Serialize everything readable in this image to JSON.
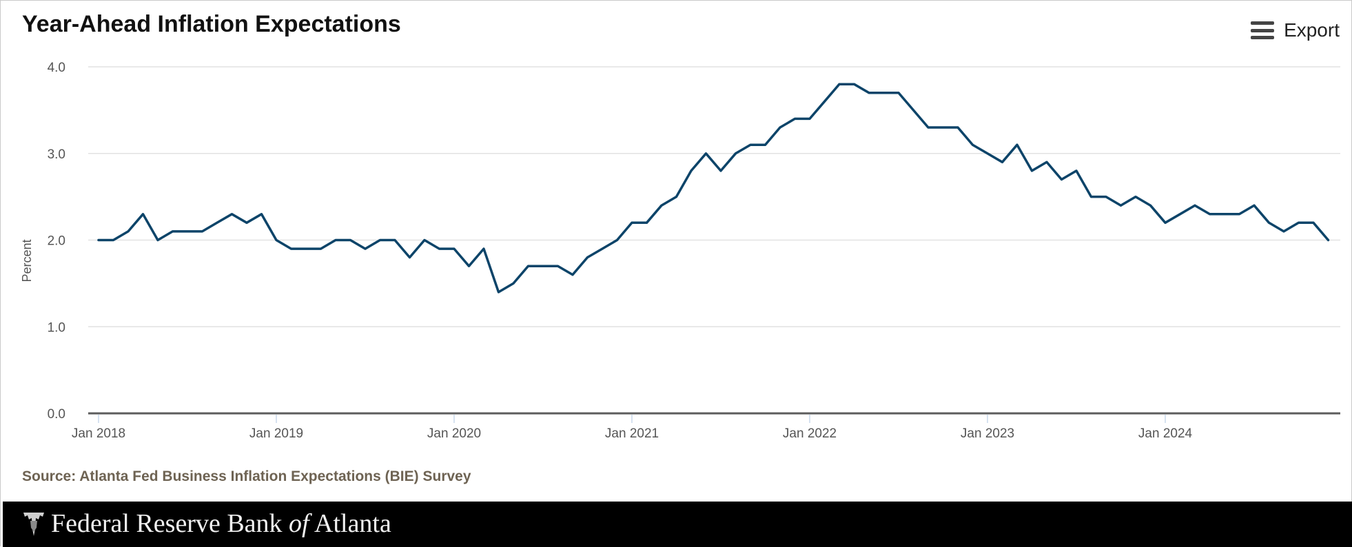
{
  "header": {
    "title": "Year-Ahead Inflation Expectations",
    "export_label": "Export",
    "export_icon": "hamburger-menu-icon"
  },
  "source": "Source: Atlanta Fed Business Inflation Expectations (BIE) Survey",
  "footer": {
    "brand_prefix": "Federal Reserve Bank ",
    "brand_of": "of",
    "brand_suffix": " Atlanta",
    "logo_icon": "eagle-seal-icon"
  },
  "colors": {
    "line": "#0d4469",
    "grid": "#e2e2e2",
    "axis": "#5c5c5c",
    "tick": "#c9d8ea"
  },
  "chart_data": {
    "type": "line",
    "title": "Year-Ahead Inflation Expectations",
    "xlabel": "",
    "ylabel": "Percent",
    "ylim": [
      0,
      4
    ],
    "yticks": [
      "0.0",
      "1.0",
      "2.0",
      "3.0",
      "4.0"
    ],
    "xticks": [
      "Jan 2018",
      "Jan 2019",
      "Jan 2020",
      "Jan 2021",
      "Jan 2022",
      "Jan 2023",
      "Jan 2024"
    ],
    "grid": true,
    "series": [
      {
        "x": [
          "2018-01",
          "2018-02",
          "2018-03",
          "2018-04",
          "2018-05",
          "2018-06",
          "2018-07",
          "2018-08",
          "2018-09",
          "2018-10",
          "2018-11",
          "2018-12",
          "2019-01",
          "2019-02",
          "2019-03",
          "2019-04",
          "2019-05",
          "2019-06",
          "2019-07",
          "2019-08",
          "2019-09",
          "2019-10",
          "2019-11",
          "2019-12",
          "2020-01",
          "2020-02",
          "2020-03",
          "2020-04",
          "2020-05",
          "2020-06",
          "2020-07",
          "2020-08",
          "2020-09",
          "2020-10",
          "2020-11",
          "2020-12",
          "2021-01",
          "2021-02",
          "2021-03",
          "2021-04",
          "2021-05",
          "2021-06",
          "2021-07",
          "2021-08",
          "2021-09",
          "2021-10",
          "2021-11",
          "2021-12",
          "2022-01",
          "2022-02",
          "2022-03",
          "2022-04",
          "2022-05",
          "2022-06",
          "2022-07",
          "2022-08",
          "2022-09",
          "2022-10",
          "2022-11",
          "2022-12",
          "2023-01",
          "2023-02",
          "2023-03",
          "2023-04",
          "2023-05",
          "2023-06",
          "2023-07",
          "2023-08",
          "2023-09",
          "2023-10",
          "2023-11",
          "2023-12",
          "2024-01",
          "2024-02",
          "2024-03",
          "2024-04",
          "2024-05",
          "2024-06",
          "2024-07",
          "2024-08",
          "2024-09",
          "2024-10",
          "2024-11",
          "2024-12"
        ],
        "values": [
          2.0,
          2.0,
          2.1,
          2.3,
          2.0,
          2.1,
          2.1,
          2.1,
          2.2,
          2.3,
          2.2,
          2.3,
          2.0,
          1.9,
          1.9,
          1.9,
          2.0,
          2.0,
          1.9,
          2.0,
          2.0,
          1.8,
          2.0,
          1.9,
          1.9,
          1.7,
          1.9,
          1.4,
          1.5,
          1.7,
          1.7,
          1.7,
          1.6,
          1.8,
          1.9,
          2.0,
          2.2,
          2.2,
          2.4,
          2.5,
          2.8,
          3.0,
          2.8,
          3.0,
          3.1,
          3.1,
          3.3,
          3.4,
          3.4,
          3.6,
          3.8,
          3.8,
          3.7,
          3.7,
          3.7,
          3.5,
          3.3,
          3.3,
          3.3,
          3.1,
          3.0,
          2.9,
          3.1,
          2.8,
          2.9,
          2.7,
          2.8,
          2.5,
          2.5,
          2.4,
          2.5,
          2.4,
          2.2,
          2.3,
          2.4,
          2.3,
          2.3,
          2.3,
          2.4,
          2.2,
          2.1,
          2.2,
          2.2,
          2.0
        ]
      }
    ]
  }
}
